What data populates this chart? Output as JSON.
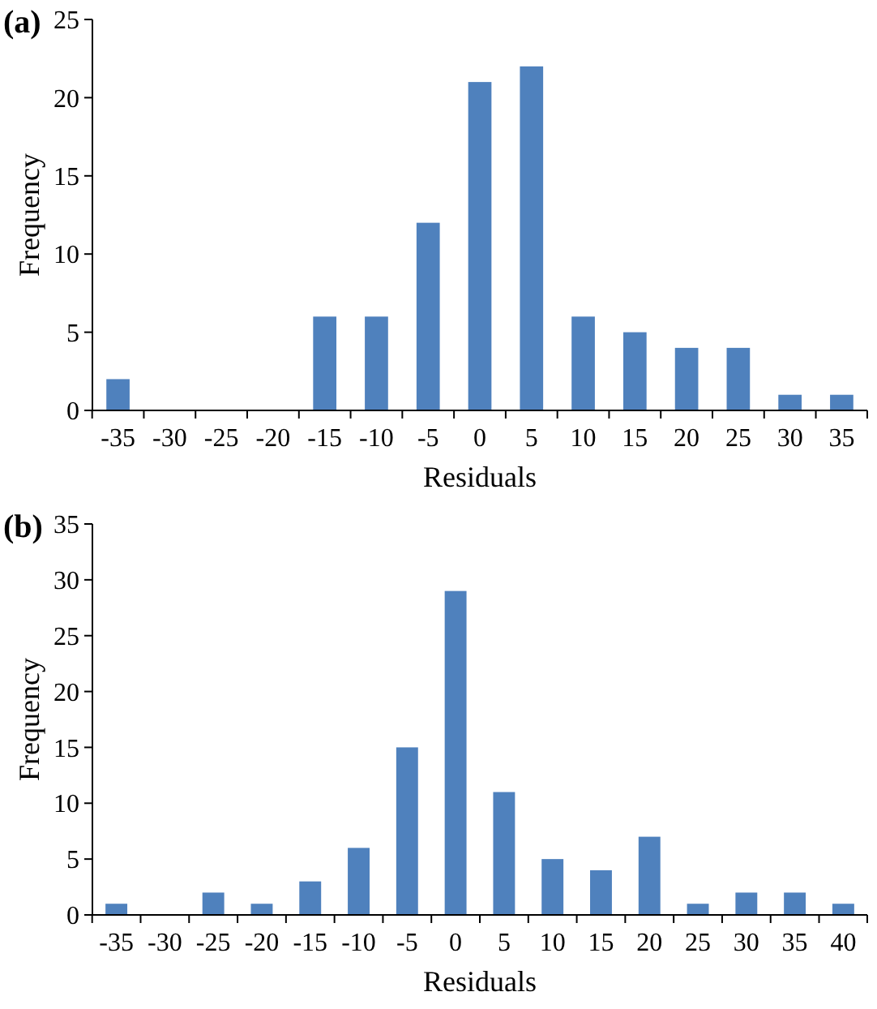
{
  "chart_data": [
    {
      "type": "bar",
      "title": "(a)",
      "xlabel": "Residuals",
      "ylabel": "Frequency",
      "categories": [
        "-35",
        "-30",
        "-25",
        "-20",
        "-15",
        "-10",
        "-5",
        "0",
        "5",
        "10",
        "15",
        "20",
        "25",
        "30",
        "35"
      ],
      "values": [
        2,
        0,
        0,
        0,
        6,
        6,
        12,
        21,
        22,
        6,
        5,
        4,
        4,
        1,
        1
      ],
      "color": "#4f81bd",
      "ylim": [
        0,
        25
      ],
      "yticks": [
        0,
        5,
        10,
        15,
        20,
        25
      ],
      "grid": false
    },
    {
      "type": "bar",
      "title": "(b)",
      "xlabel": "Residuals",
      "ylabel": "Frequency",
      "categories": [
        "-35",
        "-30",
        "-25",
        "-20",
        "-15",
        "-10",
        "-5",
        "0",
        "5",
        "10",
        "15",
        "20",
        "25",
        "30",
        "35",
        "40"
      ],
      "values": [
        1,
        0,
        2,
        1,
        3,
        6,
        15,
        29,
        11,
        5,
        4,
        7,
        1,
        2,
        2,
        1
      ],
      "color": "#4f81bd",
      "ylim": [
        0,
        35
      ],
      "yticks": [
        0,
        5,
        10,
        15,
        20,
        25,
        30,
        35
      ],
      "grid": false
    }
  ]
}
